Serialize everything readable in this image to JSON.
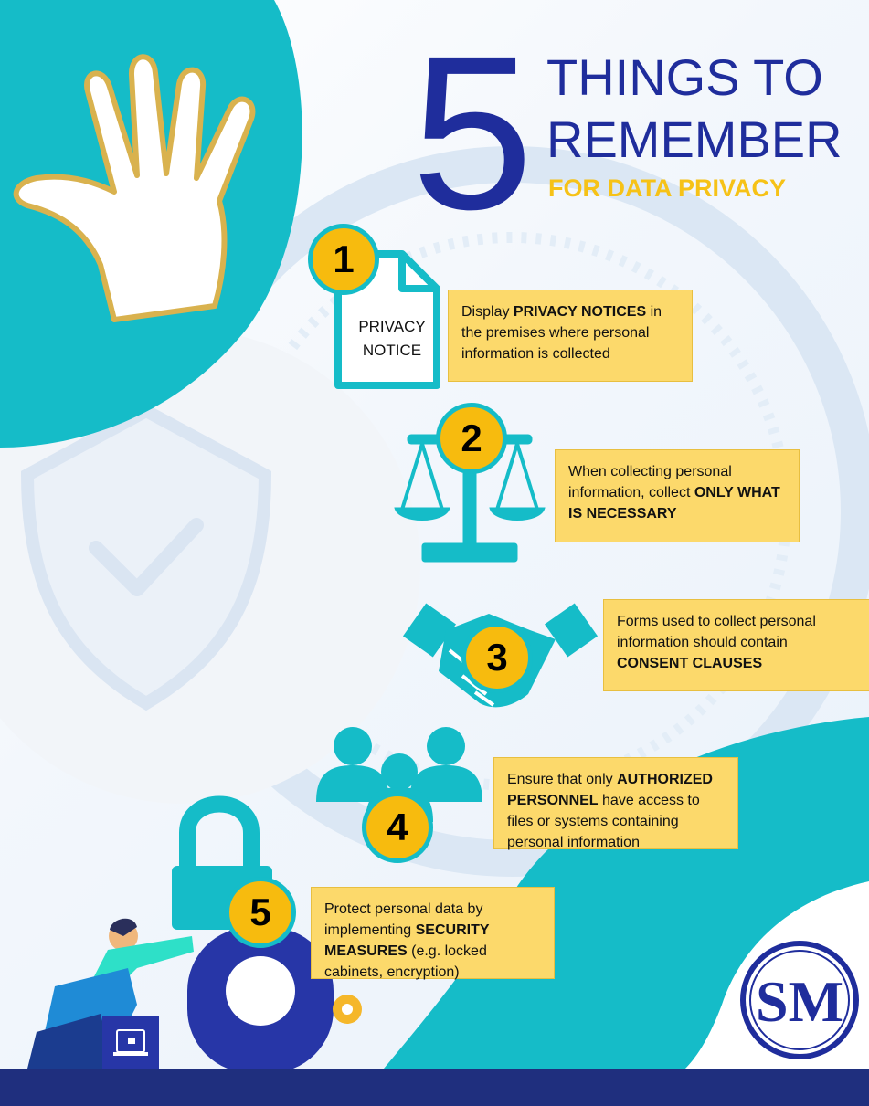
{
  "heading": {
    "number": "5",
    "line1": "THINGS TO",
    "line2": "REMEMBER",
    "subtitle": "FOR DATA PRIVACY"
  },
  "colors": {
    "navy": "#1f2d9c",
    "teal": "#15bcc8",
    "gold": "#f7bb0e",
    "callout": "#fcd96b",
    "bar": "#1f2f7e"
  },
  "icons": [
    "hand-icon",
    "shield-check-icon",
    "document-icon",
    "scales-icon",
    "handshake-icon",
    "people-icon",
    "padlock-icon",
    "sm-logo"
  ],
  "items": [
    {
      "number": "1",
      "icon_text": [
        "PRIVACY",
        "NOTICE"
      ],
      "text": [
        "Display ",
        "PRIVACY NOTICES",
        " in the premises where personal information is collected"
      ]
    },
    {
      "number": "2",
      "text": [
        "When collecting personal information, collect ",
        "ONLY WHAT IS NECESSARY",
        ""
      ]
    },
    {
      "number": "3",
      "text": [
        "Forms used to collect personal information should contain ",
        "CONSENT CLAUSES",
        ""
      ]
    },
    {
      "number": "4",
      "text": [
        "Ensure that only ",
        "AUTHORIZED PERSONNEL",
        " have access to files or systems containing personal information"
      ]
    },
    {
      "number": "5",
      "text": [
        "Protect personal data by implementing ",
        "SECURITY MEASURES",
        " (e.g. locked cabinets, encryption)"
      ]
    }
  ]
}
